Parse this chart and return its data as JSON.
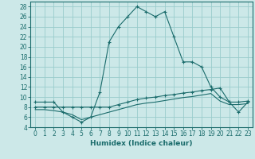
{
  "xlabel": "Humidex (Indice chaleur)",
  "background_color": "#cce8e8",
  "grid_color": "#99cccc",
  "line_color": "#1a6b6b",
  "xlim": [
    -0.5,
    23.5
  ],
  "ylim": [
    4,
    29
  ],
  "yticks": [
    4,
    6,
    8,
    10,
    12,
    14,
    16,
    18,
    20,
    22,
    24,
    26,
    28
  ],
  "xticks": [
    0,
    1,
    2,
    3,
    4,
    5,
    6,
    7,
    8,
    9,
    10,
    11,
    12,
    13,
    14,
    15,
    16,
    17,
    18,
    19,
    20,
    21,
    22,
    23
  ],
  "series1_x": [
    0,
    1,
    2,
    3,
    4,
    5,
    6,
    7,
    8,
    9,
    10,
    11,
    12,
    13,
    14,
    15,
    16,
    17,
    18,
    19,
    20,
    21,
    22,
    23
  ],
  "series1_y": [
    9,
    9,
    9,
    7,
    6,
    5,
    6,
    11,
    21,
    24,
    26,
    28,
    27,
    26,
    27,
    22,
    17,
    17,
    16,
    12,
    10,
    9,
    7,
    9
  ],
  "series2_x": [
    0,
    1,
    2,
    3,
    4,
    5,
    6,
    7,
    8,
    9,
    10,
    11,
    12,
    13,
    14,
    15,
    16,
    17,
    18,
    19,
    20,
    21,
    22,
    23
  ],
  "series2_y": [
    8.0,
    8.0,
    8.0,
    8.0,
    8.0,
    8.0,
    8.0,
    8.0,
    8.0,
    8.5,
    9.0,
    9.5,
    9.8,
    10.0,
    10.3,
    10.5,
    10.8,
    11.0,
    11.3,
    11.5,
    11.8,
    9.0,
    9.0,
    9.2
  ],
  "series3_x": [
    0,
    1,
    2,
    3,
    4,
    5,
    6,
    7,
    8,
    9,
    10,
    11,
    12,
    13,
    14,
    15,
    16,
    17,
    18,
    19,
    20,
    21,
    22,
    23
  ],
  "series3_y": [
    7.5,
    7.5,
    7.3,
    7.0,
    6.5,
    5.5,
    6.0,
    6.5,
    7.0,
    7.5,
    8.0,
    8.5,
    8.8,
    9.0,
    9.3,
    9.6,
    9.9,
    10.1,
    10.4,
    10.7,
    9.2,
    8.5,
    8.5,
    8.7
  ]
}
